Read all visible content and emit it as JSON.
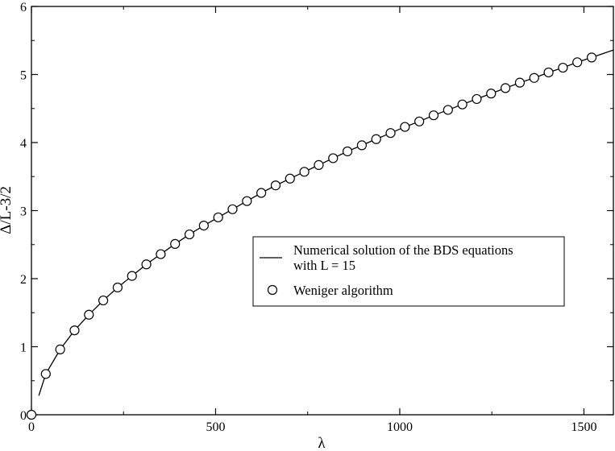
{
  "chart_data": {
    "type": "line",
    "xlabel": "λ",
    "ylabel": "Δ/L-3/2",
    "xlim": [
      0,
      1580
    ],
    "ylim": [
      0,
      6
    ],
    "x_ticks": [
      0,
      500,
      1000,
      1500
    ],
    "y_ticks": [
      0,
      1,
      2,
      3,
      4,
      5,
      6
    ],
    "grid": false,
    "legend_position": "center-right",
    "series": [
      {
        "name": "Numerical solution of the BDS equations with L = 15",
        "style": "line",
        "color": "#000000",
        "x": [
          20,
          39,
          78,
          117,
          156,
          195,
          234,
          273,
          312,
          351,
          390,
          429,
          468,
          507,
          546,
          585,
          624,
          663,
          702,
          741,
          780,
          819,
          858,
          897,
          936,
          975,
          1014,
          1053,
          1092,
          1131,
          1170,
          1209,
          1248,
          1287,
          1326,
          1365,
          1404,
          1443,
          1482,
          1521,
          1580
        ],
        "y": [
          0.28,
          0.6,
          0.96,
          1.24,
          1.47,
          1.68,
          1.87,
          2.04,
          2.21,
          2.36,
          2.51,
          2.65,
          2.78,
          2.9,
          3.02,
          3.14,
          3.26,
          3.37,
          3.47,
          3.57,
          3.67,
          3.77,
          3.87,
          3.96,
          4.05,
          4.14,
          4.23,
          4.31,
          4.4,
          4.48,
          4.56,
          4.64,
          4.72,
          4.8,
          4.88,
          4.95,
          5.03,
          5.1,
          5.18,
          5.25,
          5.36
        ]
      },
      {
        "name": "Weniger algorithm",
        "style": "markers",
        "marker": "open-circle",
        "color": "#000000",
        "x": [
          0,
          39,
          78,
          117,
          156,
          195,
          234,
          273,
          312,
          351,
          390,
          429,
          468,
          507,
          546,
          585,
          624,
          663,
          702,
          741,
          780,
          819,
          858,
          897,
          936,
          975,
          1014,
          1053,
          1092,
          1131,
          1170,
          1209,
          1248,
          1287,
          1326,
          1365,
          1404,
          1443,
          1482,
          1521
        ],
        "y": [
          0.0,
          0.6,
          0.96,
          1.24,
          1.47,
          1.68,
          1.87,
          2.04,
          2.21,
          2.36,
          2.51,
          2.65,
          2.78,
          2.9,
          3.02,
          3.14,
          3.26,
          3.37,
          3.47,
          3.57,
          3.67,
          3.77,
          3.87,
          3.96,
          4.05,
          4.14,
          4.23,
          4.31,
          4.4,
          4.48,
          4.56,
          4.64,
          4.72,
          4.8,
          4.88,
          4.95,
          5.03,
          5.1,
          5.18,
          5.25
        ]
      }
    ],
    "legend": {
      "line_entry_line1": "Numerical solution of the BDS equations",
      "line_entry_line2": "with L = 15",
      "marker_entry": "Weniger algorithm"
    }
  }
}
